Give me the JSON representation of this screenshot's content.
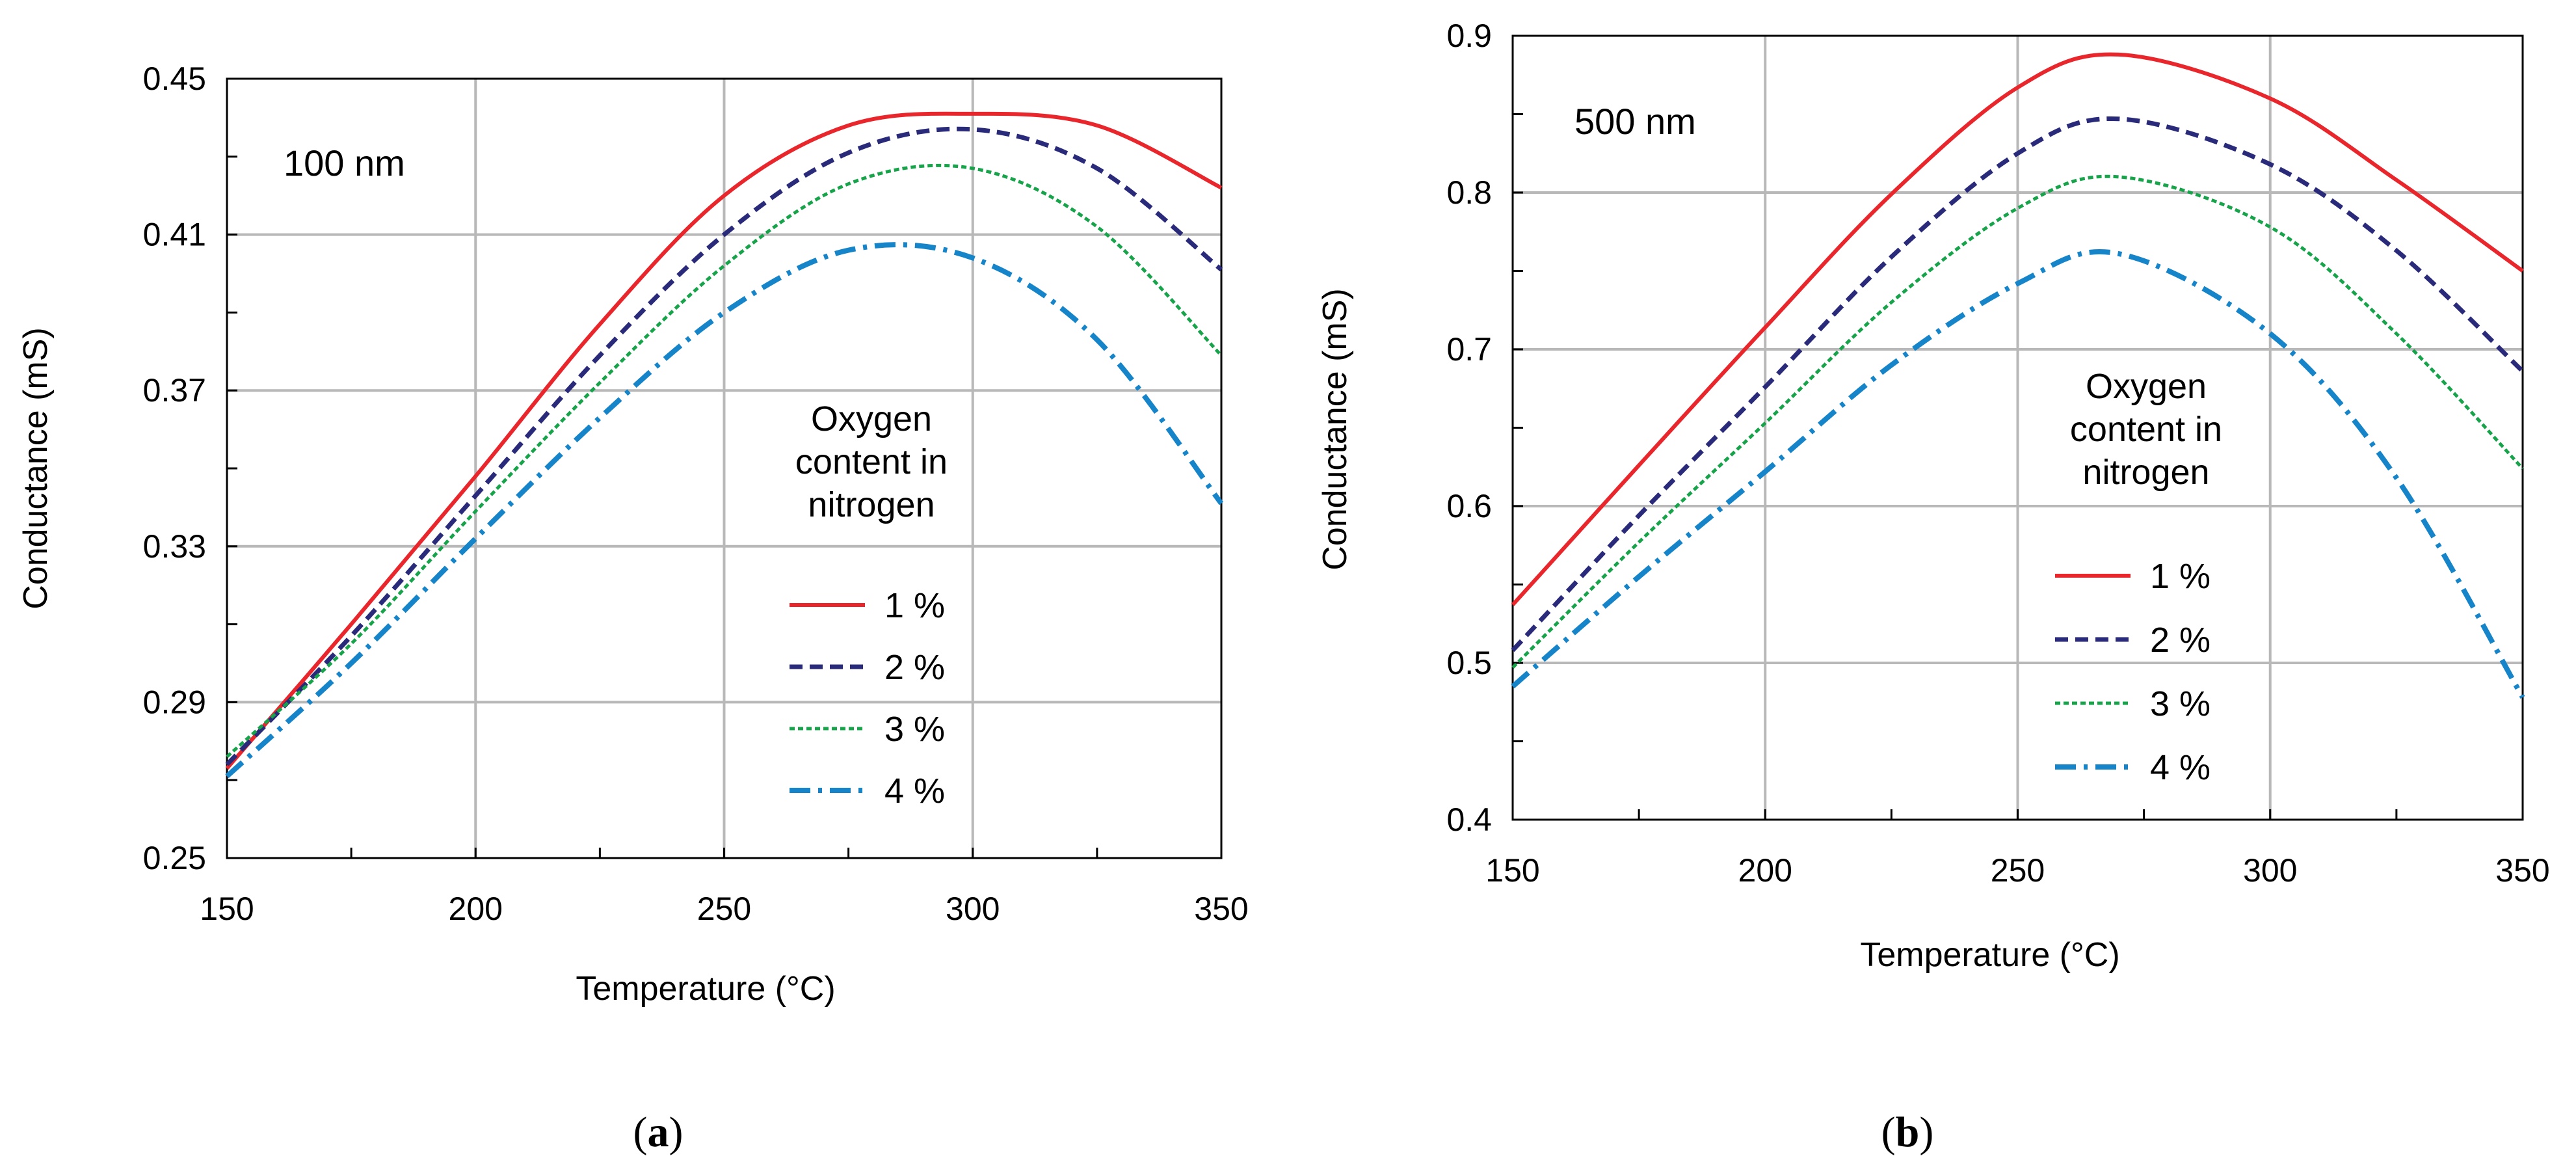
{
  "chart_data": [
    {
      "type": "line",
      "annotation": "100 nm",
      "xlabel": "Temperature (°C)",
      "ylabel": "Conductance (mS)",
      "xlim": [
        150,
        350
      ],
      "ylim": [
        0.25,
        0.45
      ],
      "xticks": [
        "150",
        "200",
        "250",
        "300",
        "350"
      ],
      "yticks": [
        "0.25",
        "0.29",
        "0.33",
        "0.37",
        "0.41",
        "0.45"
      ],
      "grid": true,
      "legend_title": [
        "Oxygen",
        "content in",
        "nitrogen"
      ],
      "legend_placement": "center-right",
      "x": [
        150,
        175,
        200,
        225,
        250,
        275,
        300,
        325,
        350
      ],
      "series": [
        {
          "name": "1 %",
          "color": "#e8262b",
          "style": "solid",
          "values": [
            0.273,
            0.31,
            0.348,
            0.387,
            0.42,
            0.438,
            0.441,
            0.438,
            0.422
          ]
        },
        {
          "name": "2 %",
          "color": "#2a2a7a",
          "style": "dashed",
          "values": [
            0.274,
            0.307,
            0.343,
            0.379,
            0.41,
            0.431,
            0.437,
            0.427,
            0.401
          ]
        },
        {
          "name": "3 %",
          "color": "#16a34a",
          "style": "dotted",
          "values": [
            0.276,
            0.305,
            0.339,
            0.372,
            0.402,
            0.423,
            0.427,
            0.412,
            0.379
          ]
        },
        {
          "name": "4 %",
          "color": "#1684c9",
          "style": "dashdot",
          "values": [
            0.271,
            0.3,
            0.332,
            0.363,
            0.39,
            0.406,
            0.404,
            0.383,
            0.341
          ]
        }
      ]
    },
    {
      "type": "line",
      "annotation": "500 nm",
      "xlabel": "Temperature (°C)",
      "ylabel": "Conductance (mS)",
      "xlim": [
        150,
        350
      ],
      "ylim": [
        0.4,
        0.9
      ],
      "xticks": [
        "150",
        "200",
        "250",
        "300",
        "350"
      ],
      "yticks": [
        "0.4",
        "0.5",
        "0.6",
        "0.7",
        "0.8",
        "0.9"
      ],
      "grid": true,
      "legend_title": [
        "Oxygen",
        "content in",
        "nitrogen"
      ],
      "legend_placement": "center-right",
      "x": [
        150,
        175,
        200,
        225,
        250,
        270,
        300,
        325,
        350
      ],
      "series": [
        {
          "name": "1 %",
          "color": "#e8262b",
          "style": "solid",
          "values": [
            0.537,
            0.626,
            0.714,
            0.799,
            0.867,
            0.888,
            0.86,
            0.808,
            0.75
          ]
        },
        {
          "name": "2 %",
          "color": "#2a2a7a",
          "style": "dashed",
          "values": [
            0.508,
            0.594,
            0.676,
            0.759,
            0.825,
            0.847,
            0.818,
            0.763,
            0.686
          ]
        },
        {
          "name": "3 %",
          "color": "#16a34a",
          "style": "dotted",
          "values": [
            0.497,
            0.577,
            0.653,
            0.73,
            0.79,
            0.81,
            0.778,
            0.71,
            0.624
          ]
        },
        {
          "name": "4 %",
          "color": "#1684c9",
          "style": "dashdot",
          "values": [
            0.485,
            0.555,
            0.622,
            0.69,
            0.742,
            0.761,
            0.71,
            0.618,
            0.478
          ]
        }
      ]
    }
  ],
  "panel_labels": [
    {
      "open": "(",
      "letter": "a",
      "close": ")"
    },
    {
      "open": "(",
      "letter": "b",
      "close": ")"
    }
  ]
}
